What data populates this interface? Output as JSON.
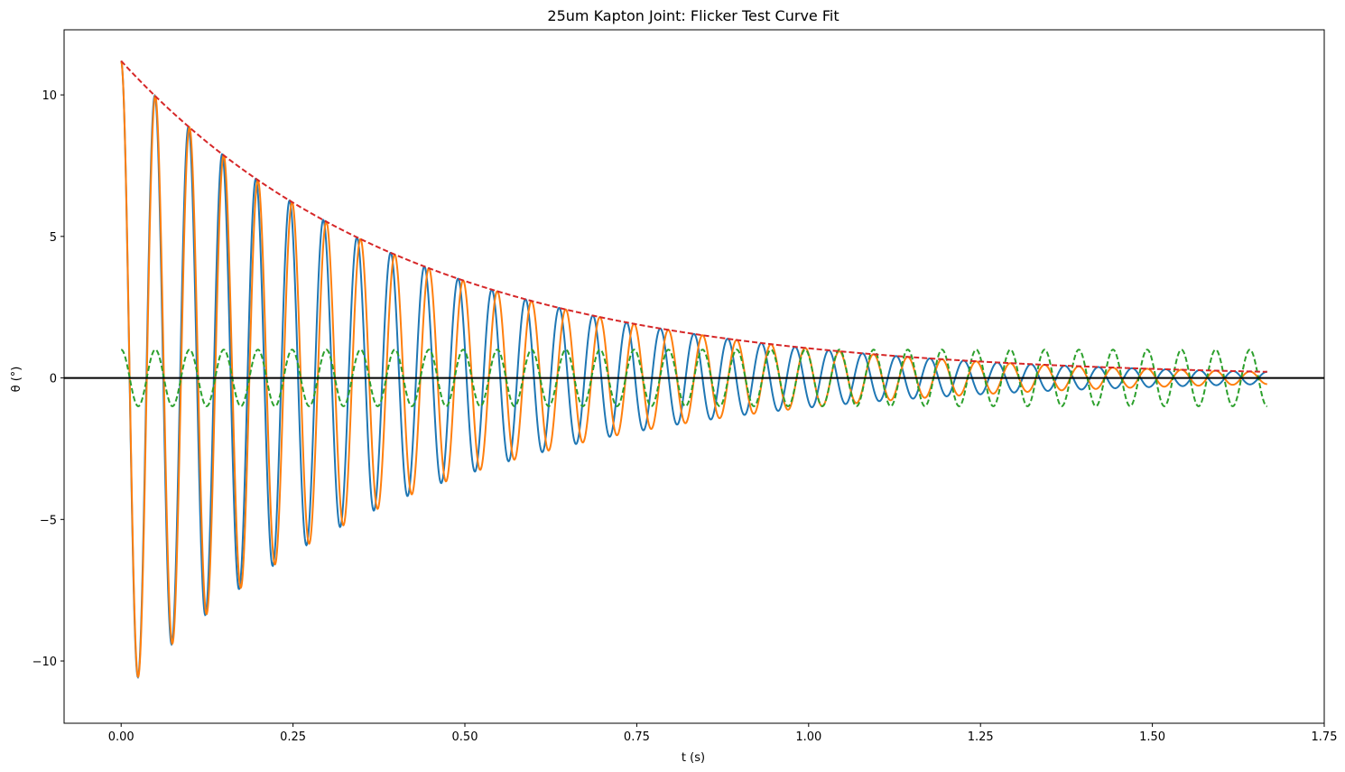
{
  "chart_data": {
    "type": "line",
    "title": "25um Kapton Joint: Flicker Test Curve Fit",
    "xlabel": "t (s)",
    "ylabel": "θ (°)",
    "xlim": [
      -0.083,
      1.75
    ],
    "ylim": [
      -12.2,
      12.3
    ],
    "x_ticks": [
      0.0,
      0.25,
      0.5,
      0.75,
      1.0,
      1.25,
      1.5,
      1.75
    ],
    "x_tick_labels": [
      "0.00",
      "0.25",
      "0.50",
      "0.75",
      "1.00",
      "1.25",
      "1.50",
      "1.75"
    ],
    "y_ticks": [
      -10,
      -5,
      0,
      5,
      10
    ],
    "y_tick_labels": [
      "−10",
      "−5",
      "0",
      "5",
      "10"
    ],
    "grid": false,
    "legend": "none",
    "x_range": [
      0.0,
      1.667
    ],
    "series": [
      {
        "role": "measured",
        "color": "#1f77b4",
        "style": "solid",
        "model": {
          "amplitude_deg": 11.2,
          "decay_time_s": 0.422,
          "frequency_hz": 20.1,
          "x_start": 0.0,
          "x_end": 1.667,
          "late_drift_extra_freq_hz": 0.3
        }
      },
      {
        "role": "fit",
        "color": "#ff7f0e",
        "style": "solid",
        "model": {
          "amplitude_deg": 11.2,
          "decay_time_s": 0.422,
          "frequency_hz": 20.1,
          "x_start": 0.0,
          "x_end": 1.667
        }
      },
      {
        "role": "unit-sinusoid",
        "color": "#2ca02c",
        "style": "dashed",
        "model": {
          "amplitude_deg": 1.0,
          "frequency_hz": 20.1,
          "x_start": 0.0,
          "x_end": 1.667
        }
      },
      {
        "role": "envelope",
        "color": "#d62728",
        "style": "dashed",
        "model": {
          "amplitude_deg": 11.2,
          "decay_time_s": 0.422,
          "x_start": 0.0,
          "x_end": 1.667
        }
      }
    ],
    "reference_line": {
      "y": 0,
      "color": "#000000"
    }
  }
}
